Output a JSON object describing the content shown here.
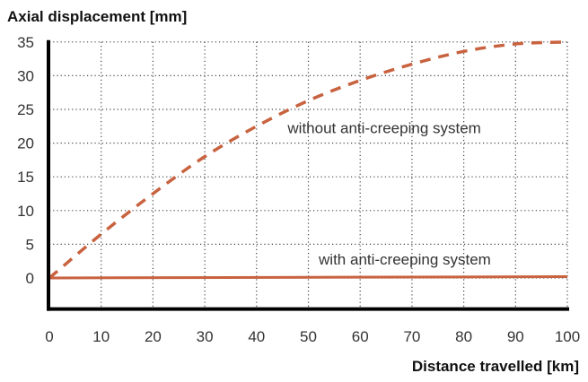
{
  "chart_data": {
    "type": "line",
    "title": "",
    "ylabel": "Axial displacement [mm]",
    "xlabel": "Distance travelled [km]",
    "xlim": [
      0,
      100
    ],
    "ylim": [
      -5,
      35
    ],
    "xticks": [
      0,
      10,
      20,
      30,
      40,
      50,
      60,
      70,
      80,
      90,
      100
    ],
    "yticks": [
      0,
      5,
      10,
      15,
      20,
      25,
      30,
      35
    ],
    "grid": true,
    "grid_style": "dotted",
    "color": "#c8623f",
    "series": [
      {
        "name": "without anti-creeping system",
        "style": "dashed",
        "x": [
          0,
          10,
          20,
          30,
          40,
          50,
          60,
          70,
          80,
          90,
          100
        ],
        "y": [
          0,
          6.5,
          12.5,
          18,
          22.5,
          26.3,
          29.3,
          31.7,
          33.6,
          34.7,
          35
        ]
      },
      {
        "name": "with anti-creeping system",
        "style": "solid",
        "x": [
          0,
          50,
          100
        ],
        "y": [
          0,
          0.1,
          0.2
        ]
      }
    ],
    "annotations": [
      {
        "text": "without anti-creeping system",
        "x": 46,
        "y": 21.5
      },
      {
        "text": "with anti-creeping system",
        "x": 52,
        "y": 2
      }
    ]
  }
}
